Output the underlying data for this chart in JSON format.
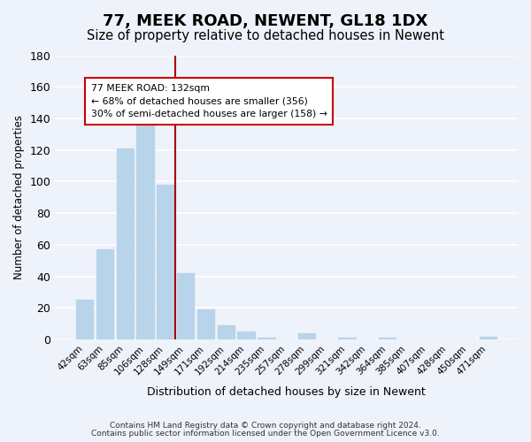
{
  "title": "77, MEEK ROAD, NEWENT, GL18 1DX",
  "subtitle": "Size of property relative to detached houses in Newent",
  "xlabel": "Distribution of detached houses by size in Newent",
  "ylabel": "Number of detached properties",
  "categories": [
    "42sqm",
    "63sqm",
    "85sqm",
    "106sqm",
    "128sqm",
    "149sqm",
    "171sqm",
    "192sqm",
    "214sqm",
    "235sqm",
    "257sqm",
    "278sqm",
    "299sqm",
    "321sqm",
    "342sqm",
    "364sqm",
    "385sqm",
    "407sqm",
    "428sqm",
    "450sqm",
    "471sqm"
  ],
  "values": [
    25,
    57,
    121,
    141,
    98,
    42,
    19,
    9,
    5,
    1,
    0,
    4,
    0,
    1,
    0,
    1,
    0,
    0,
    0,
    0,
    2
  ],
  "bar_color": "#b8d4ea",
  "vertical_line_x": 4.5,
  "vertical_line_color": "#aa0000",
  "annotation_text": "77 MEEK ROAD: 132sqm\n← 68% of detached houses are smaller (356)\n30% of semi-detached houses are larger (158) →",
  "annotation_box_color": "#ffffff",
  "annotation_box_edge": "#cc0000",
  "ylim": [
    0,
    180
  ],
  "yticks": [
    0,
    20,
    40,
    60,
    80,
    100,
    120,
    140,
    160,
    180
  ],
  "footer1": "Contains HM Land Registry data © Crown copyright and database right 2024.",
  "footer2": "Contains public sector information licensed under the Open Government Licence v3.0.",
  "background_color": "#eef2fa",
  "grid_color": "#ffffff",
  "title_fontsize": 13,
  "subtitle_fontsize": 10.5
}
